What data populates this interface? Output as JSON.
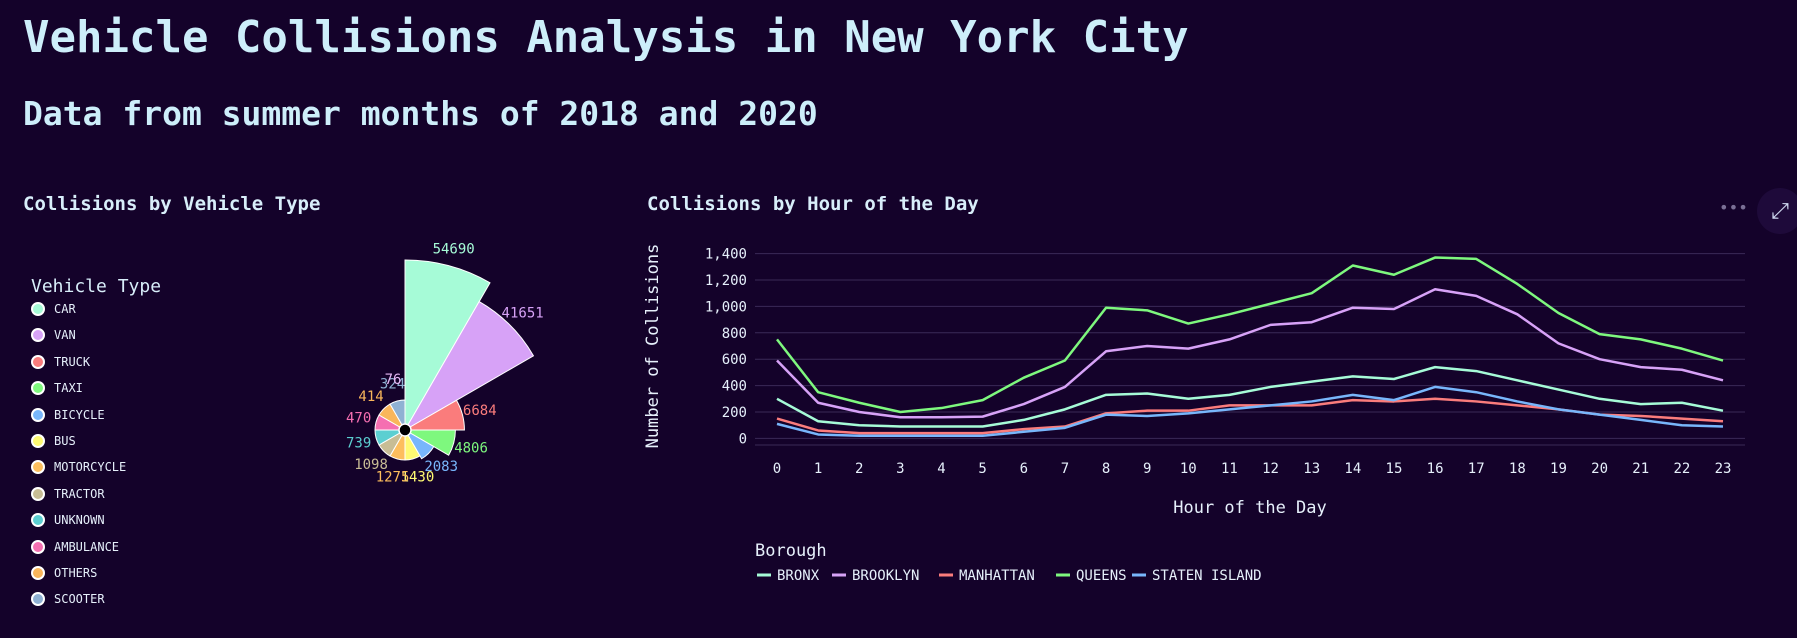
{
  "header": {
    "title": "Vehicle Collisions Analysis in New York City",
    "subtitle": "Data from summer months of 2018 and 2020"
  },
  "chart_data": [
    {
      "type": "polar-bar",
      "title": "Collisions by Vehicle Type",
      "legend_title": "Vehicle Type",
      "categories": [
        "CAR",
        "VAN",
        "TRUCK",
        "TAXI",
        "BICYCLE",
        "BUS",
        "MOTORCYCLE",
        "TRACTOR",
        "UNKNOWN",
        "AMBULANCE",
        "OTHERS",
        "SCOOTER"
      ],
      "values": [
        54690,
        41651,
        6684,
        4806,
        2083,
        1430,
        1275,
        1098,
        739,
        470,
        414,
        324
      ],
      "extra_label": "76",
      "colors": [
        "#a6fbd7",
        "#d7a2f7",
        "#fa7c7c",
        "#7ef87e",
        "#78b6fb",
        "#fffa73",
        "#fdbe5d",
        "#c8bd95",
        "#5ccfd1",
        "#f56fb1",
        "#f9b65b",
        "#8fb1d3"
      ]
    },
    {
      "type": "line",
      "title": "Collisions by Hour of the Day",
      "xlabel": "Hour of the Day",
      "ylabel": "Number of Collisions",
      "x": [
        0,
        1,
        2,
        3,
        4,
        5,
        6,
        7,
        8,
        9,
        10,
        11,
        12,
        13,
        14,
        15,
        16,
        17,
        18,
        19,
        20,
        21,
        22,
        23
      ],
      "yticks": [
        "1,400",
        "1,200",
        "1,000",
        "800",
        "600",
        "400",
        "200",
        "0"
      ],
      "ylim": [
        -50,
        1450
      ],
      "legend_title": "Borough",
      "series": [
        {
          "name": "BRONX",
          "color": "#a6fbd7",
          "values": [
            300,
            130,
            100,
            90,
            90,
            90,
            140,
            220,
            330,
            340,
            300,
            330,
            390,
            430,
            470,
            450,
            540,
            510,
            440,
            370,
            300,
            260,
            270,
            210
          ]
        },
        {
          "name": "BROOKLYN",
          "color": "#d7a2f7",
          "values": [
            590,
            270,
            200,
            160,
            160,
            165,
            260,
            390,
            660,
            700,
            680,
            750,
            860,
            880,
            990,
            980,
            1130,
            1080,
            940,
            720,
            600,
            540,
            520,
            440
          ]
        },
        {
          "name": "MANHATTAN",
          "color": "#fa7c7c",
          "values": [
            150,
            60,
            40,
            40,
            40,
            40,
            70,
            90,
            190,
            210,
            210,
            250,
            250,
            250,
            290,
            280,
            300,
            280,
            250,
            220,
            180,
            170,
            150,
            130
          ]
        },
        {
          "name": "QUEENS",
          "color": "#7ef87e",
          "values": [
            750,
            350,
            270,
            200,
            230,
            290,
            460,
            590,
            990,
            970,
            870,
            940,
            1020,
            1100,
            1310,
            1240,
            1370,
            1360,
            1170,
            950,
            790,
            750,
            680,
            590
          ]
        },
        {
          "name": "STATEN ISLAND",
          "color": "#78b6fb",
          "values": [
            110,
            30,
            20,
            20,
            20,
            20,
            50,
            80,
            180,
            170,
            190,
            220,
            250,
            280,
            330,
            290,
            390,
            350,
            280,
            220,
            180,
            140,
            100,
            90
          ]
        }
      ]
    }
  ]
}
